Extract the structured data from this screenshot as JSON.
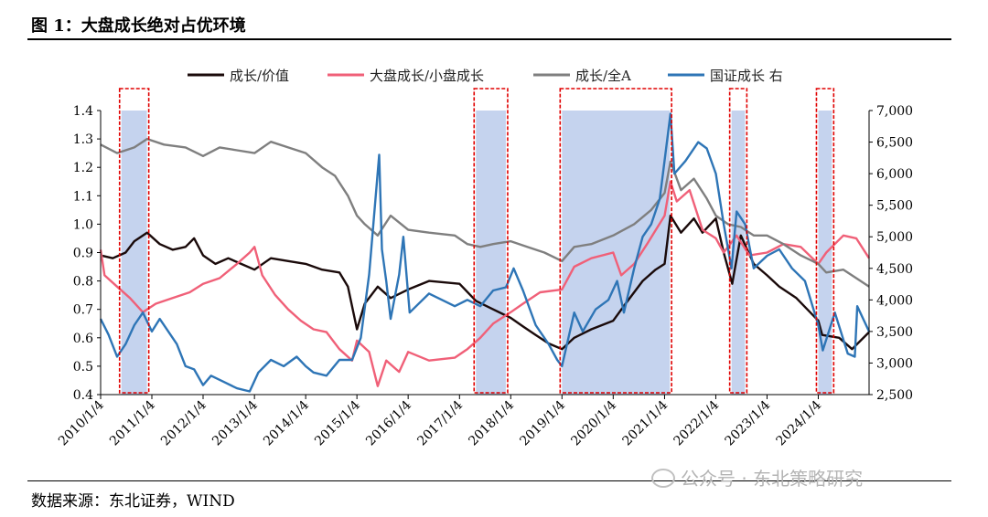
{
  "figure": {
    "title": "图 1：大盘成长绝对占优环境",
    "source": "数据来源：东北证券，WIND",
    "watermark": "公众号 · 东北策略研究"
  },
  "colors": {
    "growth_value": "#1a0a0a",
    "large_small": "#f06078",
    "growth_allA": "#7f7f7f",
    "guozheng": "#2e75b6",
    "shade": "#c5d3ee",
    "box": "#e00000"
  },
  "chart_data": {
    "type": "line",
    "title": "",
    "xlabel": "",
    "ylabel": "",
    "y_left_lim": [
      0.4,
      1.4
    ],
    "y_right_lim": [
      2500,
      7000
    ],
    "x_start": "2010/1/4",
    "x_end": "2024/12/31",
    "x_tick_labels": [
      "2010/1/4",
      "2011/1/4",
      "2012/1/4",
      "2013/1/4",
      "2014/1/4",
      "2015/1/4",
      "2016/1/4",
      "2017/1/4",
      "2018/1/4",
      "2019/1/4",
      "2020/1/4",
      "2021/1/4",
      "2022/1/4",
      "2023/1/4",
      "2024/1/4"
    ],
    "y_left_ticks": [
      "0.4",
      "0.5",
      "0.6",
      "0.7",
      "0.8",
      "0.9",
      "1.0",
      "1.1",
      "1.2",
      "1.3",
      "1.4"
    ],
    "y_right_ticks": [
      "2,500",
      "3,000",
      "3,500",
      "4,000",
      "4,500",
      "5,000",
      "5,500",
      "6,000",
      "6,500",
      "7,000"
    ],
    "grid": false,
    "legend_position": "top",
    "highlight_periods": [
      {
        "start": "2010/6/1",
        "end": "2010/11/30"
      },
      {
        "start": "2017/5/1",
        "end": "2017/11/30"
      },
      {
        "start": "2019/1/4",
        "end": "2021/2/10"
      },
      {
        "start": "2022/4/26",
        "end": "2022/7/31"
      },
      {
        "start": "2024/1/4",
        "end": "2024/4/10"
      }
    ],
    "series": [
      {
        "name": "成长/价值",
        "axis": "left",
        "color_key": "growth_value",
        "points": [
          [
            "2010/1/4",
            0.89
          ],
          [
            "2010/4/1",
            0.88
          ],
          [
            "2010/7/1",
            0.9
          ],
          [
            "2010/9/1",
            0.94
          ],
          [
            "2010/12/1",
            0.97
          ],
          [
            "2011/3/1",
            0.93
          ],
          [
            "2011/6/1",
            0.91
          ],
          [
            "2011/9/1",
            0.92
          ],
          [
            "2011/11/1",
            0.95
          ],
          [
            "2012/1/4",
            0.89
          ],
          [
            "2012/4/1",
            0.86
          ],
          [
            "2012/7/1",
            0.88
          ],
          [
            "2012/10/1",
            0.86
          ],
          [
            "2013/1/4",
            0.84
          ],
          [
            "2013/5/1",
            0.88
          ],
          [
            "2013/9/1",
            0.87
          ],
          [
            "2014/1/4",
            0.86
          ],
          [
            "2014/5/1",
            0.84
          ],
          [
            "2014/9/1",
            0.83
          ],
          [
            "2014/11/1",
            0.78
          ],
          [
            "2015/1/4",
            0.63
          ],
          [
            "2015/3/1",
            0.72
          ],
          [
            "2015/6/1",
            0.78
          ],
          [
            "2015/9/1",
            0.74
          ],
          [
            "2016/1/4",
            0.77
          ],
          [
            "2016/6/1",
            0.8
          ],
          [
            "2017/1/4",
            0.79
          ],
          [
            "2017/5/1",
            0.73
          ],
          [
            "2017/9/1",
            0.7
          ],
          [
            "2018/1/4",
            0.67
          ],
          [
            "2018/4/1",
            0.64
          ],
          [
            "2018/7/1",
            0.61
          ],
          [
            "2018/10/1",
            0.58
          ],
          [
            "2019/1/4",
            0.56
          ],
          [
            "2019/4/1",
            0.6
          ],
          [
            "2019/8/1",
            0.63
          ],
          [
            "2020/1/4",
            0.66
          ],
          [
            "2020/4/1",
            0.72
          ],
          [
            "2020/8/1",
            0.8
          ],
          [
            "2020/11/1",
            0.84
          ],
          [
            "2021/1/4",
            0.86
          ],
          [
            "2021/2/15",
            1.03
          ],
          [
            "2021/5/1",
            0.97
          ],
          [
            "2021/8/1",
            1.02
          ],
          [
            "2021/10/1",
            0.97
          ],
          [
            "2022/1/4",
            1.02
          ],
          [
            "2022/3/1",
            0.9
          ],
          [
            "2022/5/1",
            0.79
          ],
          [
            "2022/7/1",
            0.96
          ],
          [
            "2022/10/1",
            0.86
          ],
          [
            "2023/1/4",
            0.82
          ],
          [
            "2023/4/1",
            0.78
          ],
          [
            "2023/8/1",
            0.74
          ],
          [
            "2024/1/4",
            0.66
          ],
          [
            "2024/2/1",
            0.61
          ],
          [
            "2024/6/1",
            0.6
          ],
          [
            "2024/9/1",
            0.56
          ],
          [
            "2024/12/31",
            0.62
          ]
        ]
      },
      {
        "name": "大盘成长/小盘成长",
        "axis": "left",
        "color_key": "large_small",
        "points": [
          [
            "2010/1/4",
            0.91
          ],
          [
            "2010/2/1",
            0.82
          ],
          [
            "2010/5/1",
            0.78
          ],
          [
            "2010/8/1",
            0.74
          ],
          [
            "2010/11/1",
            0.69
          ],
          [
            "2011/2/1",
            0.72
          ],
          [
            "2011/6/1",
            0.74
          ],
          [
            "2011/10/1",
            0.76
          ],
          [
            "2012/1/4",
            0.79
          ],
          [
            "2012/5/1",
            0.81
          ],
          [
            "2012/9/1",
            0.86
          ],
          [
            "2012/12/1",
            0.9
          ],
          [
            "2013/1/4",
            0.92
          ],
          [
            "2013/3/1",
            0.82
          ],
          [
            "2013/6/1",
            0.75
          ],
          [
            "2013/9/1",
            0.7
          ],
          [
            "2013/12/1",
            0.66
          ],
          [
            "2014/3/1",
            0.63
          ],
          [
            "2014/6/1",
            0.62
          ],
          [
            "2014/9/1",
            0.56
          ],
          [
            "2014/12/1",
            0.52
          ],
          [
            "2015/1/4",
            0.59
          ],
          [
            "2015/4/1",
            0.55
          ],
          [
            "2015/6/1",
            0.43
          ],
          [
            "2015/8/1",
            0.52
          ],
          [
            "2015/11/1",
            0.48
          ],
          [
            "2016/1/4",
            0.55
          ],
          [
            "2016/6/1",
            0.52
          ],
          [
            "2016/12/1",
            0.53
          ],
          [
            "2017/3/1",
            0.56
          ],
          [
            "2017/6/1",
            0.6
          ],
          [
            "2017/9/1",
            0.65
          ],
          [
            "2018/1/4",
            0.69
          ],
          [
            "2018/4/1",
            0.72
          ],
          [
            "2018/8/1",
            0.76
          ],
          [
            "2019/1/4",
            0.77
          ],
          [
            "2019/4/1",
            0.85
          ],
          [
            "2019/8/1",
            0.88
          ],
          [
            "2020/1/4",
            0.9
          ],
          [
            "2020/3/1",
            0.82
          ],
          [
            "2020/6/1",
            0.86
          ],
          [
            "2020/9/1",
            0.93
          ],
          [
            "2021/1/4",
            1.03
          ],
          [
            "2021/2/15",
            1.15
          ],
          [
            "2021/4/1",
            1.08
          ],
          [
            "2021/7/1",
            1.12
          ],
          [
            "2021/10/1",
            0.98
          ],
          [
            "2022/1/4",
            0.95
          ],
          [
            "2022/3/1",
            0.9
          ],
          [
            "2022/6/1",
            0.96
          ],
          [
            "2022/9/1",
            0.89
          ],
          [
            "2023/1/4",
            0.9
          ],
          [
            "2023/5/1",
            0.93
          ],
          [
            "2023/9/1",
            0.92
          ],
          [
            "2024/1/4",
            0.86
          ],
          [
            "2024/3/1",
            0.9
          ],
          [
            "2024/7/1",
            0.96
          ],
          [
            "2024/10/1",
            0.95
          ],
          [
            "2024/12/31",
            0.88
          ]
        ]
      },
      {
        "name": "成长/全A",
        "axis": "left",
        "color_key": "growth_allA",
        "points": [
          [
            "2010/1/4",
            1.28
          ],
          [
            "2010/5/1",
            1.25
          ],
          [
            "2010/9/1",
            1.27
          ],
          [
            "2010/12/1",
            1.3
          ],
          [
            "2011/4/1",
            1.28
          ],
          [
            "2011/9/1",
            1.27
          ],
          [
            "2012/1/4",
            1.24
          ],
          [
            "2012/5/1",
            1.27
          ],
          [
            "2012/9/1",
            1.26
          ],
          [
            "2013/1/4",
            1.25
          ],
          [
            "2013/5/1",
            1.29
          ],
          [
            "2013/9/1",
            1.27
          ],
          [
            "2014/1/4",
            1.25
          ],
          [
            "2014/5/1",
            1.2
          ],
          [
            "2014/8/1",
            1.17
          ],
          [
            "2014/11/1",
            1.1
          ],
          [
            "2015/1/4",
            1.03
          ],
          [
            "2015/3/1",
            1.0
          ],
          [
            "2015/6/1",
            0.96
          ],
          [
            "2015/9/1",
            1.03
          ],
          [
            "2016/1/4",
            0.98
          ],
          [
            "2016/6/1",
            0.97
          ],
          [
            "2016/12/1",
            0.96
          ],
          [
            "2017/3/1",
            0.93
          ],
          [
            "2017/6/1",
            0.92
          ],
          [
            "2017/9/1",
            0.93
          ],
          [
            "2018/1/4",
            0.94
          ],
          [
            "2018/5/1",
            0.92
          ],
          [
            "2018/9/1",
            0.9
          ],
          [
            "2019/1/4",
            0.87
          ],
          [
            "2019/4/1",
            0.92
          ],
          [
            "2019/8/1",
            0.93
          ],
          [
            "2020/1/4",
            0.96
          ],
          [
            "2020/6/1",
            1.0
          ],
          [
            "2020/10/1",
            1.05
          ],
          [
            "2021/1/4",
            1.11
          ],
          [
            "2021/2/15",
            1.22
          ],
          [
            "2021/5/1",
            1.12
          ],
          [
            "2021/8/1",
            1.16
          ],
          [
            "2021/11/1",
            1.09
          ],
          [
            "2022/1/4",
            1.03
          ],
          [
            "2022/4/1",
            1.0
          ],
          [
            "2022/7/1",
            0.99
          ],
          [
            "2022/10/1",
            0.96
          ],
          [
            "2023/1/4",
            0.96
          ],
          [
            "2023/5/1",
            0.93
          ],
          [
            "2023/9/1",
            0.89
          ],
          [
            "2024/1/4",
            0.86
          ],
          [
            "2024/3/1",
            0.83
          ],
          [
            "2024/7/1",
            0.84
          ],
          [
            "2024/10/1",
            0.81
          ],
          [
            "2024/12/31",
            0.78
          ]
        ]
      },
      {
        "name": "国证成长 右",
        "axis": "right",
        "color_key": "guozheng",
        "points": [
          [
            "2010/1/4",
            3700
          ],
          [
            "2010/3/1",
            3450
          ],
          [
            "2010/5/1",
            3100
          ],
          [
            "2010/7/1",
            3300
          ],
          [
            "2010/9/1",
            3600
          ],
          [
            "2010/11/1",
            3800
          ],
          [
            "2011/1/4",
            3500
          ],
          [
            "2011/3/1",
            3700
          ],
          [
            "2011/5/1",
            3500
          ],
          [
            "2011/7/1",
            3300
          ],
          [
            "2011/9/1",
            2950
          ],
          [
            "2011/11/1",
            2900
          ],
          [
            "2012/1/4",
            2650
          ],
          [
            "2012/3/1",
            2800
          ],
          [
            "2012/6/1",
            2700
          ],
          [
            "2012/9/1",
            2600
          ],
          [
            "2012/12/1",
            2550
          ],
          [
            "2013/2/1",
            2850
          ],
          [
            "2013/5/1",
            3050
          ],
          [
            "2013/8/1",
            2950
          ],
          [
            "2013/11/1",
            3100
          ],
          [
            "2014/1/4",
            2950
          ],
          [
            "2014/3/1",
            2850
          ],
          [
            "2014/6/1",
            2800
          ],
          [
            "2014/9/1",
            3050
          ],
          [
            "2014/12/1",
            3050
          ],
          [
            "2015/2/1",
            3400
          ],
          [
            "2015/4/1",
            4400
          ],
          [
            "2015/6/12",
            6300
          ],
          [
            "2015/7/1",
            4800
          ],
          [
            "2015/8/1",
            4300
          ],
          [
            "2015/9/1",
            3700
          ],
          [
            "2015/11/1",
            4400
          ],
          [
            "2015/12/1",
            5000
          ],
          [
            "2016/1/15",
            3800
          ],
          [
            "2016/3/1",
            3900
          ],
          [
            "2016/6/1",
            4100
          ],
          [
            "2016/9/1",
            4000
          ],
          [
            "2016/12/1",
            3900
          ],
          [
            "2017/3/1",
            4000
          ],
          [
            "2017/6/1",
            3900
          ],
          [
            "2017/9/1",
            4150
          ],
          [
            "2017/12/1",
            4200
          ],
          [
            "2018/1/25",
            4500
          ],
          [
            "2018/4/1",
            4150
          ],
          [
            "2018/7/1",
            3600
          ],
          [
            "2018/10/1",
            3300
          ],
          [
            "2018/12/1",
            3050
          ],
          [
            "2019/1/4",
            2950
          ],
          [
            "2019/4/1",
            3800
          ],
          [
            "2019/6/1",
            3500
          ],
          [
            "2019/9/1",
            3850
          ],
          [
            "2019/12/1",
            4000
          ],
          [
            "2020/2/1",
            4300
          ],
          [
            "2020/3/20",
            3800
          ],
          [
            "2020/6/1",
            4500
          ],
          [
            "2020/8/1",
            5000
          ],
          [
            "2020/10/1",
            5200
          ],
          [
            "2020/12/1",
            5600
          ],
          [
            "2021/2/15",
            6950
          ],
          [
            "2021/3/15",
            6000
          ],
          [
            "2021/6/1",
            6200
          ],
          [
            "2021/9/1",
            6500
          ],
          [
            "2021/11/1",
            6400
          ],
          [
            "2022/1/4",
            6000
          ],
          [
            "2022/3/1",
            5200
          ],
          [
            "2022/4/26",
            4500
          ],
          [
            "2022/6/1",
            5400
          ],
          [
            "2022/8/1",
            5200
          ],
          [
            "2022/10/1",
            4500
          ],
          [
            "2023/1/4",
            4700
          ],
          [
            "2023/4/1",
            4800
          ],
          [
            "2023/7/1",
            4500
          ],
          [
            "2023/10/1",
            4300
          ],
          [
            "2024/1/4",
            3600
          ],
          [
            "2024/2/5",
            3200
          ],
          [
            "2024/5/1",
            3800
          ],
          [
            "2024/8/1",
            3150
          ],
          [
            "2024/9/20",
            3100
          ],
          [
            "2024/10/8",
            3900
          ],
          [
            "2024/12/31",
            3500
          ]
        ]
      }
    ]
  }
}
